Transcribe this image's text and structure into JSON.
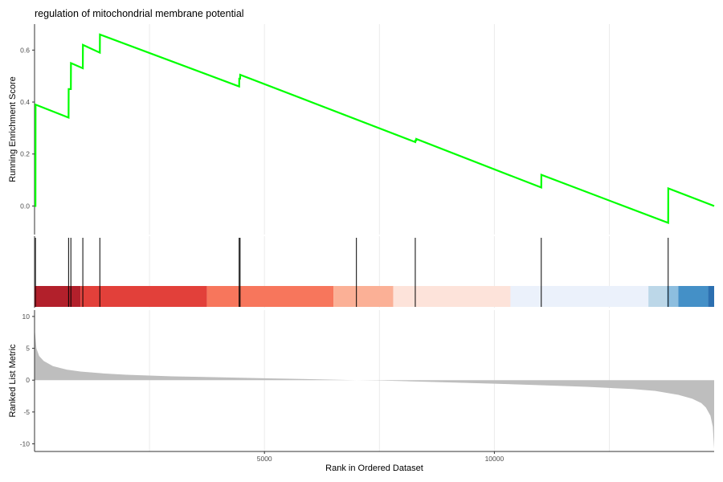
{
  "chart_data": {
    "type": "line",
    "title": "regulation of mitochondrial membrane potential",
    "xlabel": "Rank in Ordered Dataset",
    "xlim": [
      0,
      14780
    ],
    "x_ticks": [
      5000,
      10000
    ],
    "x_tick_labels": [
      "5000",
      "10000"
    ],
    "grid": true,
    "legend": "none",
    "colors": {
      "es_line": "#00ff00",
      "hit_line": "#000000",
      "metric_fill": "#bebebe",
      "grid": "#ebebeb"
    },
    "panels": [
      {
        "name": "running-enrichment",
        "ylabel": "Running Enrichment Score",
        "ylim": [
          -0.11,
          0.7
        ],
        "y_ticks": [
          0.0,
          0.2,
          0.4,
          0.6
        ],
        "y_tick_labels": [
          "0.0",
          "0.2",
          "0.4",
          "0.6"
        ],
        "series": [
          {
            "x": [
              0,
              20,
              22,
              740,
              742,
              790,
              792,
              1050,
              1052,
              1420,
              1422,
              4450,
              4452,
              4470,
              4472,
              8280,
              8282,
              8300,
              8302,
              11020,
              11022,
              13780,
              13782,
              14780
            ],
            "y": [
              0.0,
              0.0,
              0.39,
              0.34,
              0.45,
              0.45,
              0.55,
              0.53,
              0.62,
              0.59,
              0.66,
              0.46,
              0.49,
              0.49,
              0.505,
              0.246,
              0.252,
              0.252,
              0.258,
              0.071,
              0.12,
              -0.065,
              0.068,
              0.0
            ]
          }
        ]
      },
      {
        "name": "gene-hits",
        "hits": [
          20,
          740,
          790,
          1050,
          1420,
          4450,
          4470,
          7000,
          8280,
          11020,
          13780
        ]
      },
      {
        "name": "rank-heat-bar",
        "segments": [
          {
            "from": 0,
            "to": 1000,
            "color": "#b2202b"
          },
          {
            "from": 1000,
            "to": 3750,
            "color": "#e2403a"
          },
          {
            "from": 3750,
            "to": 6500,
            "color": "#f7765c"
          },
          {
            "from": 6500,
            "to": 7800,
            "color": "#fbb096"
          },
          {
            "from": 7800,
            "to": 10350,
            "color": "#fde3da"
          },
          {
            "from": 10350,
            "to": 13350,
            "color": "#ebf1fb"
          },
          {
            "from": 13350,
            "to": 13750,
            "color": "#bcd7e8"
          },
          {
            "from": 13750,
            "to": 14000,
            "color": "#8dbedf"
          },
          {
            "from": 14000,
            "to": 14650,
            "color": "#4490c7"
          },
          {
            "from": 14650,
            "to": 14780,
            "color": "#2c6fb0"
          }
        ]
      },
      {
        "name": "ranked-metric",
        "ylabel": "Ranked List Metric",
        "ylim": [
          -11.2,
          11
        ],
        "y_ticks": [
          -10,
          -5,
          0,
          5,
          10
        ],
        "y_tick_labels": [
          "-10",
          "-5",
          "0",
          "5",
          "10"
        ],
        "series": [
          {
            "x": [
              0,
              40,
              100,
              200,
              400,
              700,
              1000,
              1500,
              2000,
              3000,
              4000,
              5000,
              6000,
              7000,
              7500,
              8000,
              9000,
              10000,
              11000,
              12000,
              13000,
              13500,
              14000,
              14300,
              14500,
              14600,
              14700,
              14750,
              14780
            ],
            "y": [
              8.3,
              5.0,
              3.8,
              3.0,
              2.2,
              1.65,
              1.35,
              1.05,
              0.85,
              0.6,
              0.45,
              0.3,
              0.15,
              0.0,
              -0.05,
              -0.15,
              -0.35,
              -0.55,
              -0.8,
              -1.05,
              -1.4,
              -1.7,
              -2.3,
              -2.9,
              -3.6,
              -4.3,
              -5.6,
              -7.3,
              -10.8
            ]
          }
        ]
      }
    ]
  }
}
